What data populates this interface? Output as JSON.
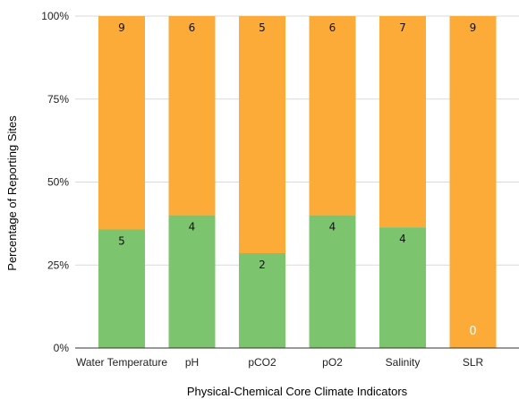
{
  "chart_data": {
    "type": "bar",
    "stacked": true,
    "normalized_percent": true,
    "xlabel": "Physical-Chemical Core Climate Indicators",
    "ylabel": "Percentage of Reporting Sites",
    "categories": [
      "Water Temperature",
      "pH",
      "pCO2",
      "pO2",
      "Salinity",
      "SLR"
    ],
    "y_ticks": [
      "0%",
      "25%",
      "50%",
      "75%",
      "100%"
    ],
    "ylim": [
      0,
      100
    ],
    "grid": true,
    "legend": "none",
    "series": [
      {
        "color": "#7DC46E",
        "values": [
          5,
          4,
          2,
          4,
          4,
          0
        ],
        "labels": [
          "5",
          "4",
          "2",
          "4",
          "4",
          "0"
        ]
      },
      {
        "color": "#FCAA38",
        "values": [
          9,
          6,
          5,
          6,
          7,
          9
        ],
        "labels": [
          "9",
          "6",
          "5",
          "6",
          "7",
          "9"
        ]
      }
    ],
    "colors": {
      "grid": "#D9D9D9",
      "axis": "#333333"
    }
  }
}
